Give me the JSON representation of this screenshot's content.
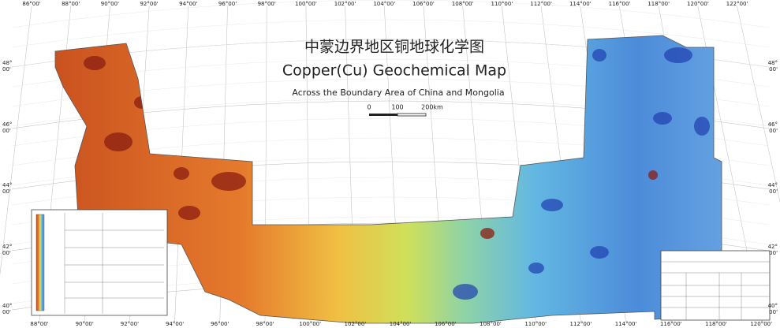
{
  "map": {
    "title_zh": "中蒙边界地区铜地球化学图",
    "title_en": "Copper(Cu) Geochemical Map",
    "subtitle": "Across the Boundary Area of China and Mongolia",
    "scale_labels": [
      "0",
      "100",
      "200km"
    ],
    "lon_labels_top": [
      "86°00'",
      "88°00'",
      "90°00'",
      "92°00'",
      "94°00'",
      "96°00'",
      "98°00'",
      "100°00'",
      "102°00'",
      "104°00'",
      "106°00'",
      "108°00'",
      "110°00'",
      "112°00'",
      "114°00'",
      "116°00'",
      "118°00'",
      "120°00'",
      "122°00'"
    ],
    "lon_labels_bottom": [
      "88°00'",
      "90°00'",
      "92°00'",
      "94°00'",
      "96°00'",
      "98°00'",
      "100°00'",
      "102°00'",
      "104°00'",
      "106°00'",
      "108°00'",
      "110°00'",
      "112°00'",
      "114°00'",
      "116°00'",
      "118°00'",
      "120°00'"
    ],
    "lat_labels": [
      {
        "deg": "48°",
        "min": "00'"
      },
      {
        "deg": "46°",
        "min": "00'"
      },
      {
        "deg": "44°",
        "min": "00'"
      },
      {
        "deg": "42°",
        "min": "00'"
      },
      {
        "deg": "40°",
        "min": "00'"
      }
    ]
  }
}
